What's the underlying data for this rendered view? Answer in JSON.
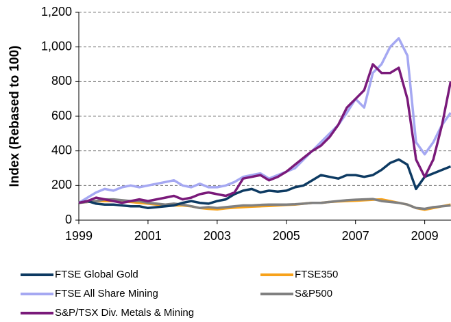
{
  "chart_data": {
    "type": "line",
    "y_label": "Index (Rebased to 100)",
    "x": [
      1999,
      1999.25,
      1999.5,
      1999.75,
      2000,
      2000.25,
      2000.5,
      2000.75,
      2001,
      2001.25,
      2001.5,
      2001.75,
      2002,
      2002.25,
      2002.5,
      2002.75,
      2003,
      2003.25,
      2003.5,
      2003.75,
      2004,
      2004.25,
      2004.5,
      2004.75,
      2005,
      2005.25,
      2005.5,
      2005.75,
      2006,
      2006.25,
      2006.5,
      2006.75,
      2007,
      2007.25,
      2007.5,
      2007.75,
      2008,
      2008.25,
      2008.5,
      2008.75,
      2009,
      2009.25,
      2009.5,
      2009.75
    ],
    "xlim": [
      1999,
      2009.8
    ],
    "xticks": [
      1999,
      2001,
      2003,
      2005,
      2007,
      2009
    ],
    "ylim": [
      0,
      1200
    ],
    "yticks": [
      0,
      200,
      400,
      600,
      800,
      {
        "value": 1000,
        "label": "1,000"
      },
      {
        "value": 1200,
        "label": "1,200"
      }
    ],
    "grid": true,
    "series": [
      {
        "name": "FTSE Global Gold",
        "color": "#0d3a62",
        "values": [
          100,
          110,
          95,
          90,
          90,
          85,
          80,
          80,
          70,
          75,
          80,
          85,
          100,
          110,
          100,
          95,
          110,
          120,
          150,
          170,
          180,
          160,
          170,
          165,
          170,
          190,
          200,
          230,
          260,
          250,
          240,
          260,
          260,
          250,
          260,
          290,
          330,
          350,
          320,
          180,
          250,
          270,
          290,
          310
        ]
      },
      {
        "name": "FTSE350",
        "color": "#f7a21b",
        "values": [
          100,
          105,
          110,
          110,
          110,
          108,
          105,
          100,
          95,
          90,
          85,
          85,
          85,
          80,
          70,
          65,
          62,
          68,
          72,
          75,
          78,
          80,
          82,
          85,
          88,
          90,
          95,
          100,
          100,
          105,
          108,
          110,
          112,
          115,
          118,
          120,
          110,
          100,
          90,
          70,
          60,
          70,
          80,
          90
        ]
      },
      {
        "name": "FTSE All Share Mining",
        "color": "#a5a8f2",
        "values": [
          100,
          130,
          160,
          180,
          170,
          190,
          200,
          190,
          200,
          210,
          220,
          230,
          200,
          190,
          210,
          190,
          190,
          200,
          220,
          250,
          260,
          270,
          240,
          260,
          280,
          300,
          350,
          400,
          450,
          500,
          550,
          620,
          700,
          650,
          850,
          900,
          1000,
          1050,
          950,
          450,
          380,
          450,
          550,
          620
        ]
      },
      {
        "name": "S&P500",
        "color": "#808080",
        "values": [
          100,
          105,
          110,
          120,
          120,
          115,
          110,
          110,
          100,
          95,
          90,
          95,
          90,
          80,
          70,
          75,
          70,
          75,
          80,
          85,
          85,
          88,
          90,
          90,
          90,
          92,
          95,
          100,
          100,
          105,
          110,
          115,
          118,
          120,
          122,
          110,
          105,
          100,
          90,
          70,
          65,
          75,
          80,
          85
        ]
      },
      {
        "name": "S&P/TSX Div. Metals & Mining",
        "color": "#7a1a7a",
        "values": [
          100,
          110,
          130,
          120,
          110,
          100,
          110,
          120,
          110,
          120,
          130,
          140,
          120,
          130,
          150,
          160,
          150,
          140,
          160,
          240,
          250,
          260,
          230,
          250,
          280,
          320,
          360,
          400,
          430,
          480,
          550,
          650,
          700,
          750,
          900,
          850,
          850,
          880,
          700,
          350,
          250,
          350,
          550,
          800
        ]
      }
    ]
  }
}
